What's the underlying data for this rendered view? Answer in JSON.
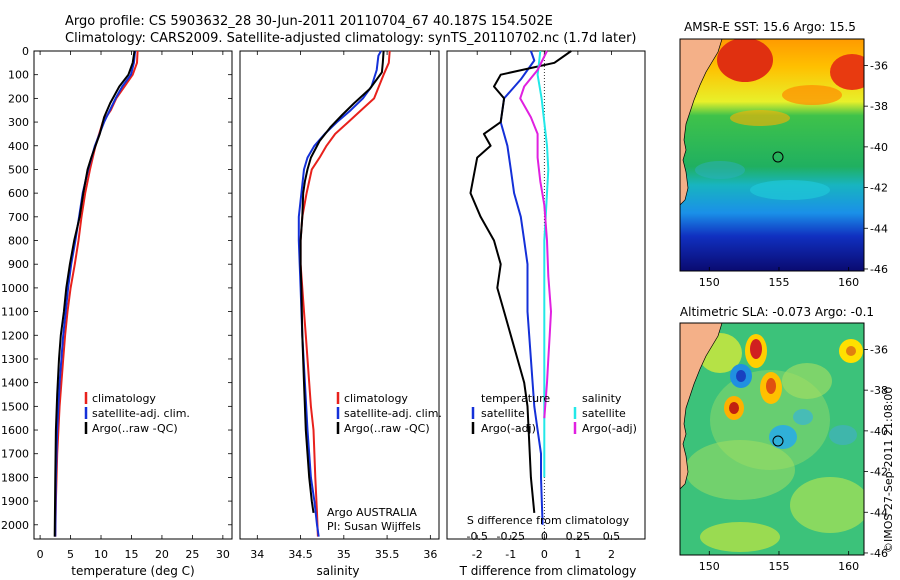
{
  "header": {
    "line1": "Argo profile: CS 5903632_28 30-Jun-2011 20110704_67 40.187S 154.502E",
    "line2": "Climatology: CARS2009. Satellite-adjusted climatology: synTS_20110702.nc (1.7d later)"
  },
  "colors": {
    "climatology": "#e8211c",
    "satellite": "#1430d8",
    "argo": "#000000",
    "sal_satellite": "#22e8e8",
    "sal_argo": "#e020e0"
  },
  "depth_axis": {
    "ticks": [
      "0",
      "100",
      "200",
      "300",
      "400",
      "500",
      "600",
      "700",
      "800",
      "900",
      "1000",
      "1100",
      "1200",
      "1300",
      "1400",
      "1500",
      "1600",
      "1700",
      "1800",
      "1900",
      "2000"
    ]
  },
  "chart_data": [
    {
      "type": "line",
      "name": "temperature",
      "xlabel": "temperature (deg C)",
      "xlim": [
        -1,
        31.5
      ],
      "ylim": [
        2060,
        0
      ],
      "xticks": [
        "0",
        "5",
        "10",
        "15",
        "20",
        "25",
        "30"
      ],
      "legend": [
        "climatology",
        "satellite-adj. clim.",
        "Argo(..raw -QC)"
      ],
      "series": [
        {
          "name": "climatology",
          "color_key": "climatology",
          "x": [
            16.0,
            15.9,
            15.2,
            12.5,
            11.6,
            10.3,
            9.1,
            8.2,
            7.4,
            6.8,
            6.3,
            5.7,
            5.0,
            4.5,
            4.1,
            3.8,
            3.5,
            3.2,
            3.0,
            2.8,
            2.6,
            2.5
          ],
          "y": [
            0,
            50,
            100,
            200,
            250,
            300,
            400,
            500,
            600,
            700,
            800,
            900,
            1000,
            1100,
            1200,
            1300,
            1400,
            1500,
            1600,
            1700,
            1900,
            2050
          ]
        },
        {
          "name": "satellite",
          "color_key": "satellite",
          "x": [
            15.6,
            15.4,
            14.9,
            13.5,
            12.4,
            10.5,
            9.0,
            7.9,
            7.0,
            6.4,
            5.8,
            5.1,
            4.6,
            4.2,
            3.8,
            3.5,
            3.2,
            3.0,
            2.8,
            2.6,
            2.5
          ],
          "y": [
            0,
            50,
            100,
            150,
            200,
            300,
            400,
            500,
            600,
            700,
            800,
            900,
            1000,
            1100,
            1200,
            1300,
            1400,
            1500,
            1600,
            1800,
            2050
          ]
        },
        {
          "name": "argo",
          "color_key": "argo",
          "x": [
            15.5,
            15.2,
            14.5,
            13.0,
            11.5,
            10.5,
            9.8,
            9.1,
            8.4,
            7.8,
            7.1,
            6.5,
            5.6,
            4.9,
            4.3,
            3.9,
            3.4,
            3.1,
            2.8,
            2.6,
            2.5,
            2.4
          ],
          "y": [
            0,
            50,
            100,
            150,
            220,
            280,
            350,
            400,
            450,
            500,
            600,
            700,
            800,
            900,
            1000,
            1100,
            1200,
            1300,
            1450,
            1600,
            1800,
            2050
          ]
        }
      ]
    },
    {
      "type": "line",
      "name": "salinity",
      "xlabel": "salinity",
      "xlim": [
        33.8,
        36.1
      ],
      "ylim": [
        2060,
        0
      ],
      "xticks": [
        "34",
        "34.5",
        "35",
        "35.5",
        "36"
      ],
      "legend": [
        "climatology",
        "satellite-adj. clim.",
        "Argo(..raw -QC)"
      ],
      "annotations": [
        "Argo AUSTRALIA",
        "PI: Susan Wijffels"
      ],
      "series": [
        {
          "name": "climatology",
          "color_key": "climatology",
          "x": [
            35.53,
            35.52,
            35.46,
            35.35,
            35.2,
            35.05,
            34.9,
            34.8,
            34.72,
            34.63,
            34.57,
            34.52,
            34.5,
            34.5,
            34.52,
            34.54,
            34.56,
            34.58,
            34.6,
            34.62,
            34.65,
            34.67,
            34.69,
            34.7
          ],
          "y": [
            0,
            50,
            100,
            200,
            250,
            300,
            350,
            400,
            450,
            500,
            600,
            700,
            800,
            900,
            1000,
            1100,
            1200,
            1300,
            1400,
            1500,
            1600,
            1800,
            1950,
            2050
          ]
        },
        {
          "name": "satellite",
          "color_key": "satellite",
          "x": [
            35.43,
            35.4,
            35.38,
            35.32,
            35.22,
            35.08,
            34.92,
            34.78,
            34.66,
            34.58,
            34.54,
            34.51,
            34.48,
            34.48,
            34.49,
            34.5,
            34.52,
            34.55,
            34.58,
            34.62,
            34.66,
            34.69,
            34.71
          ],
          "y": [
            0,
            20,
            80,
            150,
            200,
            250,
            300,
            350,
            400,
            450,
            500,
            600,
            700,
            800,
            900,
            1000,
            1200,
            1400,
            1600,
            1800,
            1900,
            2000,
            2050
          ]
        },
        {
          "name": "argo",
          "color_key": "argo",
          "x": [
            35.46,
            35.45,
            35.44,
            35.3,
            35.12,
            34.98,
            34.85,
            34.72,
            34.62,
            34.58,
            34.55,
            34.53,
            34.52,
            34.5,
            34.5,
            34.51,
            34.52,
            34.54,
            34.56,
            34.58,
            34.6,
            34.63,
            34.65
          ],
          "y": [
            0,
            50,
            90,
            160,
            220,
            270,
            320,
            380,
            450,
            500,
            550,
            600,
            700,
            800,
            900,
            1000,
            1200,
            1400,
            1600,
            1700,
            1800,
            1900,
            1950
          ]
        }
      ]
    },
    {
      "type": "line",
      "name": "difference",
      "xlabel": "T difference from climatology",
      "xlabel_top": "S difference from climatology",
      "xlim": [
        -2.9,
        3.0
      ],
      "ylim": [
        2060,
        0
      ],
      "xticks": [
        "-2",
        "-1",
        "0",
        "1",
        "2"
      ],
      "s_ticks": [
        "-0.5",
        "-0.25",
        "0",
        "0.25",
        "0.5"
      ],
      "legend_temperature": [
        "temperature",
        "satellite",
        "Argo(-adj)"
      ],
      "legend_salinity": [
        "salinity",
        "satellite",
        "Argo(-adj)"
      ],
      "series": [
        {
          "name": "T satellite",
          "color_key": "satellite",
          "x": [
            -0.4,
            -0.3,
            -0.5,
            -0.7,
            -1.2,
            -1.3,
            -1.1,
            -1.0,
            -0.9,
            -0.7,
            -0.6,
            -0.5,
            -0.5,
            -0.5,
            -0.45,
            -0.4,
            -0.35,
            -0.3,
            -0.2,
            -0.1,
            -0.1,
            -0.05
          ],
          "y": [
            0,
            40,
            80,
            120,
            200,
            300,
            400,
            500,
            600,
            700,
            800,
            900,
            1000,
            1100,
            1200,
            1300,
            1400,
            1500,
            1600,
            1700,
            1800,
            2000
          ]
        },
        {
          "name": "T Argo",
          "color_key": "argo",
          "x": [
            0.8,
            0.3,
            -1.3,
            -1.5,
            -1.2,
            -1.3,
            -1.8,
            -1.6,
            -2.0,
            -2.2,
            -1.9,
            -1.5,
            -1.3,
            -1.4,
            -1.2,
            -1.0,
            -0.8,
            -0.6,
            -0.5,
            -0.4,
            -0.3
          ],
          "y": [
            0,
            50,
            100,
            150,
            200,
            300,
            350,
            400,
            450,
            600,
            700,
            800,
            900,
            1000,
            1100,
            1200,
            1300,
            1400,
            1500,
            1800,
            1950
          ]
        },
        {
          "name": "S satellite",
          "color_key": "sal_satellite",
          "x": [
            -0.03,
            -0.04,
            -0.05,
            -0.02,
            0.0,
            0.02,
            0.03,
            0.02,
            0.01,
            0.0,
            0.0,
            0.0,
            0.0,
            0.0,
            0.0
          ],
          "y": [
            0,
            50,
            100,
            200,
            300,
            400,
            500,
            600,
            700,
            800,
            1000,
            1200,
            1400,
            1600,
            1800
          ]
        },
        {
          "name": "S Argo",
          "color_key": "sal_argo",
          "x": [
            0.02,
            -0.05,
            -0.15,
            -0.18,
            -0.1,
            -0.05,
            -0.05,
            -0.03,
            0.0,
            0.02,
            0.03,
            0.05,
            0.04,
            0.03,
            0.02,
            0.0
          ],
          "y": [
            0,
            80,
            150,
            200,
            280,
            350,
            450,
            550,
            650,
            800,
            950,
            1100,
            1200,
            1300,
            1400,
            1550
          ]
        }
      ]
    }
  ],
  "maps": {
    "sst": {
      "title": "AMSR-E SST: 15.6  Argo: 15.5",
      "yticks": [
        "-36",
        "-38",
        "-40",
        "-42",
        "-44",
        "-46"
      ],
      "xticks": [
        "150",
        "155",
        "160"
      ]
    },
    "sla": {
      "title": "Altimetric SLA: -0.073  Argo: -0.1",
      "yticks": [
        "-36",
        "-38",
        "-40",
        "-42",
        "-44",
        "-46"
      ],
      "xticks": [
        "150",
        "155",
        "160"
      ]
    }
  },
  "credit": "©IMOS 27-Sep-2011 21:08:00"
}
